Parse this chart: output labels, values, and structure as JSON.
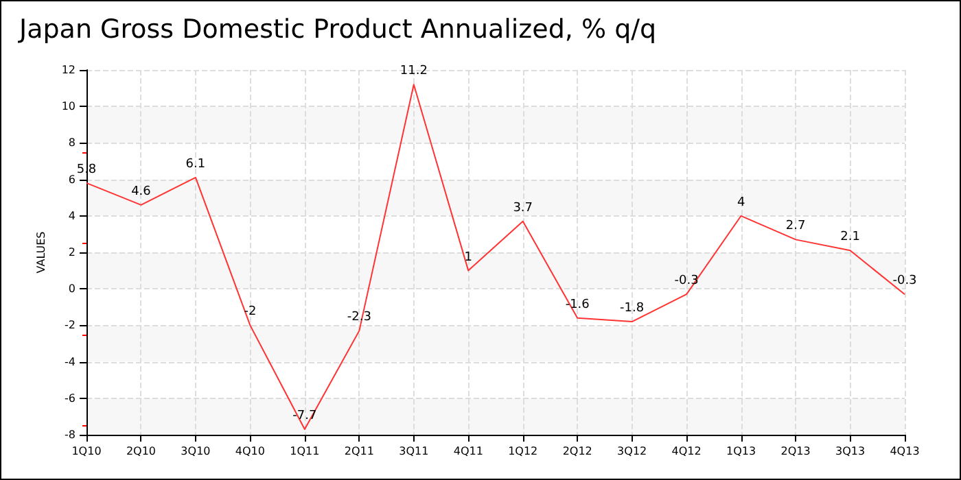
{
  "chart_data": {
    "type": "line",
    "title": "Japan Gross Domestic Product Annualized, % q/q",
    "ylabel": "VALUES",
    "categories": [
      "1Q10",
      "2Q10",
      "3Q10",
      "4Q10",
      "1Q11",
      "2Q11",
      "3Q11",
      "4Q11",
      "1Q12",
      "2Q12",
      "3Q12",
      "4Q12",
      "1Q13",
      "2Q13",
      "3Q13",
      "4Q13"
    ],
    "series": [
      {
        "color": "#ff3333",
        "values": [
          5.8,
          4.6,
          6.1,
          -2,
          -7.7,
          -2.3,
          11.2,
          1,
          3.7,
          -1.6,
          -1.8,
          -0.3,
          4,
          2.7,
          2.1,
          -0.3
        ]
      }
    ],
    "ylim": [
      -8,
      12
    ],
    "yticks": [
      -8,
      -6,
      -4,
      -2,
      0,
      2,
      4,
      6,
      8,
      10,
      12
    ],
    "grid": true,
    "data_labels": true,
    "marker": "none",
    "line_style": "solid"
  }
}
